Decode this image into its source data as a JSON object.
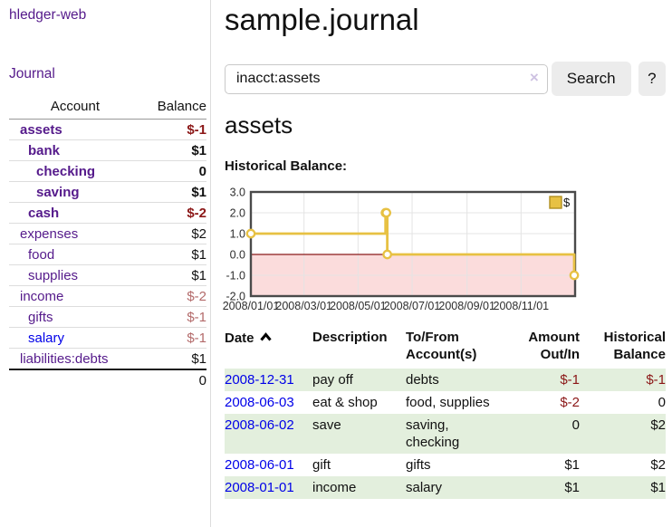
{
  "app": {
    "brand": "hledger-web"
  },
  "sidebar": {
    "nav_journal": "Journal",
    "accounts": {
      "col_account": "Account",
      "col_balance": "Balance",
      "rows": [
        {
          "name": "assets",
          "balance": "$-1"
        },
        {
          "name": "bank",
          "balance": "$1"
        },
        {
          "name": "checking",
          "balance": "0"
        },
        {
          "name": "saving",
          "balance": "$1"
        },
        {
          "name": "cash",
          "balance": "$-2"
        },
        {
          "name": "expenses",
          "balance": "$2"
        },
        {
          "name": "food",
          "balance": "$1"
        },
        {
          "name": "supplies",
          "balance": "$1"
        },
        {
          "name": "income",
          "balance": "$-2"
        },
        {
          "name": "gifts",
          "balance": "$-1"
        },
        {
          "name": "salary",
          "balance": "$-1"
        },
        {
          "name": "liabilities:debts",
          "balance": "$1"
        }
      ],
      "total": "0"
    }
  },
  "main": {
    "title": "sample.journal",
    "search": {
      "value": "inacct:assets",
      "clear_icon": "×",
      "search_button": "Search",
      "help_button": "?"
    },
    "account_heading": "assets",
    "chart_title": "Historical Balance:"
  },
  "chart_data": {
    "type": "line",
    "style": "step",
    "title": "Historical Balance:",
    "series": [
      {
        "name": "$",
        "color": "#e7c143",
        "points": [
          [
            "2008-01-01",
            1
          ],
          [
            "2008-06-01",
            2
          ],
          [
            "2008-06-02",
            2
          ],
          [
            "2008-06-03",
            0
          ],
          [
            "2008-12-31",
            -1
          ]
        ]
      }
    ],
    "xlim": [
      "2008-01-01",
      "2009-01-01"
    ],
    "ylim": [
      -2,
      3
    ],
    "y_ticks": [
      "3.0",
      "2.0",
      "1.0",
      "0.0",
      "-1.0",
      "-2.0"
    ],
    "x_ticks": [
      "2008/01/01",
      "2008/03/01",
      "2008/05/01",
      "2008/07/01",
      "2008/09/01",
      "2008/11/01"
    ],
    "legend": {
      "label": "$",
      "position": "top-right"
    },
    "grid": true,
    "negative_region_color": "#fbdcdc",
    "zero_line_color": "#8b1a1a",
    "border_color": "#4a4a4a",
    "grid_color": "#e4e4e4"
  },
  "register": {
    "headers": {
      "date": "Date",
      "description": "Description",
      "tofrom": "To/From\nAccount(s)",
      "amount": "Amount\nOut/In",
      "balance": "Historical\nBalance"
    },
    "sort": {
      "column": "Date",
      "direction": "ascending",
      "icon": "chevron-up"
    },
    "rows": [
      {
        "date": "2008-12-31",
        "description": "pay off",
        "tofrom": "debts",
        "amount": "$-1",
        "balance": "$-1"
      },
      {
        "date": "2008-06-03",
        "description": "eat & shop",
        "tofrom": "food, supplies",
        "amount": "$-2",
        "balance": "0"
      },
      {
        "date": "2008-06-02",
        "description": "save",
        "tofrom": "saving,\nchecking",
        "amount": "0",
        "balance": "$2"
      },
      {
        "date": "2008-06-01",
        "description": "gift",
        "tofrom": "gifts",
        "amount": "$1",
        "balance": "$2"
      },
      {
        "date": "2008-01-01",
        "description": "income",
        "tofrom": "salary",
        "amount": "$1",
        "balance": "$1"
      }
    ]
  }
}
